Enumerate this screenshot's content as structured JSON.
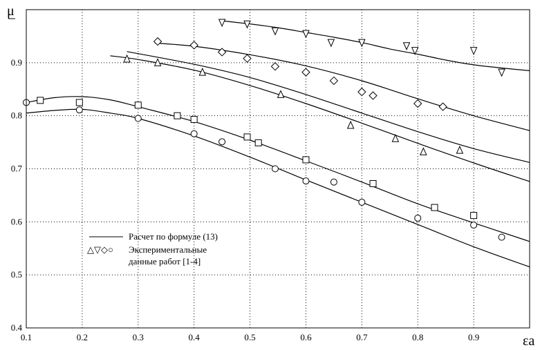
{
  "chart_data": {
    "type": "scatter",
    "title": "",
    "xlabel": "εa",
    "ylabel": "μ",
    "xlim": [
      0.1,
      1.0
    ],
    "ylim": [
      0.4,
      1.0
    ],
    "x_ticks": [
      "0.1",
      "0.2",
      "0.3",
      "0.4",
      "0.5",
      "0.6",
      "0.7",
      "0.8",
      "0.9"
    ],
    "y_ticks": [
      "0.4",
      "0.5",
      "0.6",
      "0.7",
      "0.8",
      "0.9"
    ],
    "grid": true,
    "legend": {
      "placement": "lower-left",
      "line_label": "Расчет по формуле (13)",
      "marker_symbols": "△▽◇○",
      "marker_label_1": "Экспериментальные",
      "marker_label_2": "данные работ [1-4]"
    },
    "series": [
      {
        "marker": "inverted-triangle",
        "points": [
          [
            0.45,
            0.976
          ],
          [
            0.495,
            0.973
          ],
          [
            0.545,
            0.96
          ],
          [
            0.6,
            0.955
          ],
          [
            0.645,
            0.938
          ],
          [
            0.7,
            0.938
          ],
          [
            0.78,
            0.932
          ],
          [
            0.795,
            0.923
          ],
          [
            0.9,
            0.923
          ],
          [
            0.95,
            0.882
          ]
        ],
        "curve": [
          [
            0.45,
            0.979
          ],
          [
            0.5,
            0.973
          ],
          [
            0.55,
            0.966
          ],
          [
            0.6,
            0.957
          ],
          [
            0.65,
            0.948
          ],
          [
            0.7,
            0.938
          ],
          [
            0.75,
            0.926
          ],
          [
            0.8,
            0.916
          ],
          [
            0.85,
            0.905
          ],
          [
            0.9,
            0.896
          ],
          [
            0.95,
            0.89
          ],
          [
            1.0,
            0.885
          ]
        ]
      },
      {
        "marker": "diamond",
        "points": [
          [
            0.335,
            0.94
          ],
          [
            0.4,
            0.933
          ],
          [
            0.45,
            0.92
          ],
          [
            0.495,
            0.908
          ],
          [
            0.545,
            0.893
          ],
          [
            0.6,
            0.882
          ],
          [
            0.65,
            0.866
          ],
          [
            0.7,
            0.845
          ],
          [
            0.72,
            0.838
          ],
          [
            0.8,
            0.823
          ],
          [
            0.845,
            0.817
          ]
        ],
        "curve": [
          [
            0.33,
            0.937
          ],
          [
            0.4,
            0.931
          ],
          [
            0.5,
            0.915
          ],
          [
            0.6,
            0.894
          ],
          [
            0.7,
            0.866
          ],
          [
            0.8,
            0.832
          ],
          [
            0.9,
            0.8
          ],
          [
            1.0,
            0.772
          ]
        ]
      },
      {
        "marker": "triangle",
        "points": [
          [
            0.28,
            0.907
          ],
          [
            0.335,
            0.9
          ],
          [
            0.415,
            0.882
          ],
          [
            0.555,
            0.84
          ],
          [
            0.68,
            0.782
          ],
          [
            0.76,
            0.757
          ],
          [
            0.81,
            0.732
          ],
          [
            0.875,
            0.735
          ]
        ],
        "curve": [
          [
            0.28,
            0.921
          ],
          [
            0.4,
            0.897
          ],
          [
            0.5,
            0.872
          ],
          [
            0.6,
            0.84
          ],
          [
            0.7,
            0.805
          ],
          [
            0.8,
            0.77
          ],
          [
            0.9,
            0.738
          ],
          [
            1.0,
            0.712
          ]
        ]
      },
      {
        "marker": "triangle",
        "points": [],
        "curve": [
          [
            0.25,
            0.913
          ],
          [
            0.3,
            0.906
          ],
          [
            0.4,
            0.886
          ],
          [
            0.5,
            0.857
          ],
          [
            0.6,
            0.823
          ],
          [
            0.7,
            0.786
          ],
          [
            0.8,
            0.748
          ],
          [
            0.9,
            0.711
          ],
          [
            1.0,
            0.676
          ]
        ]
      },
      {
        "marker": "square",
        "points": [
          [
            0.125,
            0.829
          ],
          [
            0.195,
            0.825
          ],
          [
            0.3,
            0.82
          ],
          [
            0.37,
            0.8
          ],
          [
            0.4,
            0.793
          ],
          [
            0.495,
            0.76
          ],
          [
            0.515,
            0.749
          ],
          [
            0.6,
            0.717
          ],
          [
            0.72,
            0.672
          ],
          [
            0.83,
            0.627
          ],
          [
            0.9,
            0.612
          ]
        ],
        "curve": [
          [
            0.1,
            0.825
          ],
          [
            0.15,
            0.834
          ],
          [
            0.2,
            0.836
          ],
          [
            0.25,
            0.83
          ],
          [
            0.3,
            0.817
          ],
          [
            0.4,
            0.789
          ],
          [
            0.5,
            0.754
          ],
          [
            0.6,
            0.715
          ],
          [
            0.7,
            0.675
          ],
          [
            0.8,
            0.634
          ],
          [
            0.9,
            0.598
          ],
          [
            1.0,
            0.563
          ]
        ]
      },
      {
        "marker": "circle",
        "points": [
          [
            0.1,
            0.825
          ],
          [
            0.195,
            0.811
          ],
          [
            0.3,
            0.795
          ],
          [
            0.4,
            0.766
          ],
          [
            0.45,
            0.751
          ],
          [
            0.545,
            0.7
          ],
          [
            0.6,
            0.677
          ],
          [
            0.65,
            0.675
          ],
          [
            0.7,
            0.637
          ],
          [
            0.8,
            0.607
          ],
          [
            0.9,
            0.594
          ],
          [
            0.95,
            0.571
          ]
        ],
        "curve": [
          [
            0.1,
            0.805
          ],
          [
            0.15,
            0.81
          ],
          [
            0.2,
            0.812
          ],
          [
            0.25,
            0.805
          ],
          [
            0.3,
            0.795
          ],
          [
            0.4,
            0.762
          ],
          [
            0.5,
            0.722
          ],
          [
            0.6,
            0.679
          ],
          [
            0.7,
            0.637
          ],
          [
            0.8,
            0.595
          ],
          [
            0.9,
            0.553
          ],
          [
            1.0,
            0.515
          ]
        ]
      }
    ]
  }
}
